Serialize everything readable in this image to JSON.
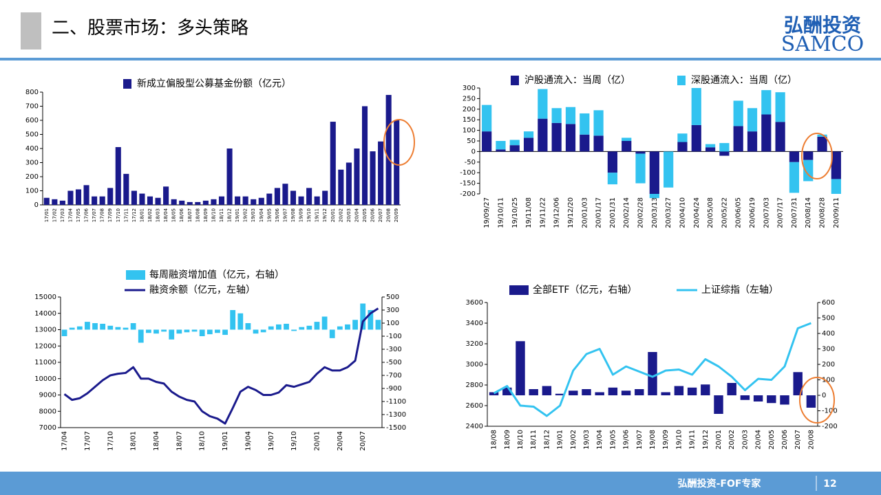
{
  "header": {
    "title": "二、股票市场：多头策略",
    "logo_cn": "弘酬投资",
    "logo_en": "SAMCO"
  },
  "footer": {
    "text": "弘酬投资-FOF专家",
    "page": "12"
  },
  "chart_data": [
    {
      "type": "bar",
      "categories": [
        "17/01",
        "17/02",
        "17/03",
        "17/04",
        "17/05",
        "17/06",
        "17/07",
        "17/08",
        "17/09",
        "17/10",
        "17/11",
        "17/12",
        "18/01",
        "18/02",
        "18/03",
        "18/04",
        "18/05",
        "18/06",
        "18/07",
        "18/08",
        "18/09",
        "18/10",
        "18/11",
        "18/12",
        "19/01",
        "19/02",
        "19/03",
        "19/04",
        "19/05",
        "19/06",
        "19/07",
        "19/08",
        "19/09",
        "19/10",
        "19/11",
        "19/12",
        "20/01",
        "20/02",
        "20/03",
        "20/04",
        "20/05",
        "20/06",
        "20/07",
        "20/08",
        "20/09"
      ],
      "series": [
        {
          "name": "新成立偏股型公募基金份额（亿元）",
          "color": "#1a1a8c",
          "values": [
            50,
            40,
            30,
            100,
            110,
            140,
            60,
            60,
            120,
            410,
            220,
            100,
            80,
            60,
            50,
            130,
            40,
            30,
            20,
            20,
            30,
            40,
            60,
            400,
            60,
            60,
            40,
            50,
            80,
            120,
            150,
            100,
            60,
            120,
            60,
            100,
            590,
            250,
            300,
            400,
            700,
            380,
            450,
            780,
            600
          ]
        }
      ],
      "ylim": [
        0,
        800
      ],
      "yticks": [
        0,
        100,
        200,
        300,
        400,
        500,
        600,
        700,
        800
      ],
      "grid": false
    },
    {
      "type": "bar",
      "stacked": true,
      "categories": [
        "19/09/27",
        "19/10/11",
        "19/10/25",
        "19/11/08",
        "19/11/22",
        "19/12/06",
        "19/12/20",
        "20/01/03",
        "20/01/17",
        "20/01/31",
        "20/02/14",
        "20/02/28",
        "20/03/13",
        "20/03/27",
        "20/04/10",
        "20/04/24",
        "20/05/08",
        "20/05/22",
        "20/06/05",
        "20/06/19",
        "20/07/03",
        "20/07/17",
        "20/07/31",
        "20/08/14",
        "20/08/28",
        "20/09/11"
      ],
      "series": [
        {
          "name": "沪股通流入：当周（亿）",
          "color": "#1a1a8c",
          "values": [
            95,
            10,
            30,
            65,
            155,
            135,
            130,
            80,
            75,
            -100,
            50,
            -10,
            -200,
            0,
            45,
            125,
            20,
            -20,
            120,
            95,
            175,
            140,
            -50,
            -40,
            70,
            -130
          ]
        },
        {
          "name": "深股通流入：当周（亿）",
          "color": "#33c3f0",
          "values": [
            125,
            40,
            25,
            30,
            140,
            70,
            80,
            100,
            120,
            -55,
            15,
            -140,
            -20,
            -170,
            40,
            175,
            15,
            40,
            120,
            110,
            115,
            140,
            -145,
            -100,
            10,
            -70
          ]
        }
      ],
      "ylim": [
        -200,
        300
      ],
      "yticks": [
        -200,
        -150,
        -100,
        -50,
        0,
        50,
        100,
        150,
        200,
        250,
        300
      ],
      "grid": false
    },
    {
      "type": "combo",
      "categories": [
        "17/04",
        null,
        null,
        "17/07",
        null,
        null,
        "17/10",
        null,
        null,
        "18/01",
        null,
        null,
        "18/04",
        null,
        null,
        "18/07",
        null,
        null,
        "18/10",
        null,
        null,
        "19/01",
        null,
        null,
        "19/04",
        null,
        null,
        "19/07",
        null,
        null,
        "19/10",
        null,
        null,
        "20/01",
        null,
        null,
        "20/04",
        null,
        null,
        "20/07",
        null,
        null
      ],
      "series": [
        {
          "name": "每周融资增加值（亿元，右轴）",
          "type": "bar",
          "axis": "y2",
          "color": "#33c3f0",
          "values": [
            -100,
            30,
            50,
            120,
            100,
            90,
            60,
            40,
            30,
            100,
            -200,
            -50,
            -60,
            -30,
            -150,
            -60,
            -40,
            -30,
            -100,
            -70,
            -50,
            -80,
            300,
            250,
            100,
            -60,
            -40,
            50,
            80,
            90,
            -20,
            40,
            60,
            120,
            200,
            -130,
            50,
            80,
            150,
            400,
            300,
            150
          ]
        },
        {
          "name": "融资余额（亿元，左轴）",
          "type": "line",
          "color": "#1a1a8c",
          "values": [
            9050,
            8700,
            8800,
            9100,
            9500,
            9900,
            10200,
            10300,
            10350,
            10700,
            10000,
            10000,
            9800,
            9700,
            9200,
            8900,
            8700,
            8600,
            8000,
            7700,
            7550,
            7250,
            8200,
            9200,
            9500,
            9300,
            9000,
            9000,
            9150,
            9600,
            9500,
            9650,
            9800,
            10300,
            10700,
            10500,
            10500,
            10700,
            11100,
            13500,
            14000,
            14300
          ]
        }
      ],
      "ylim": [
        7000,
        15000
      ],
      "yticks": [
        7000,
        8000,
        9000,
        10000,
        11000,
        12000,
        13000,
        14000,
        15000
      ],
      "y2lim": [
        -1500,
        500
      ],
      "y2ticks": [
        -1500,
        -1300,
        -1100,
        -900,
        -700,
        -500,
        -300,
        -100,
        100,
        300,
        500
      ],
      "grid": false
    },
    {
      "type": "combo",
      "categories": [
        "18/08",
        "18/09",
        "18/10",
        "18/11",
        "18/12",
        "19/01",
        "19/02",
        "19/03",
        "19/04",
        "19/05",
        "19/06",
        "19/07",
        "19/08",
        "19/09",
        "19/10",
        "19/11",
        "19/12",
        "20/01",
        "20/02",
        "20/03",
        "20/04",
        "20/05",
        "20/06",
        "20/07",
        "20/08"
      ],
      "series": [
        {
          "name": "全部ETF（亿元，右轴）",
          "type": "bar",
          "axis": "y2",
          "color": "#1a1a8c",
          "values": [
            20,
            50,
            350,
            40,
            60,
            10,
            30,
            40,
            20,
            50,
            30,
            40,
            280,
            20,
            60,
            50,
            70,
            -120,
            80,
            -30,
            -40,
            -50,
            -60,
            150,
            -80
          ]
        },
        {
          "name": "上证综指（左轴）",
          "type": "line",
          "color": "#33c3f0",
          "values": [
            2720,
            2790,
            2600,
            2590,
            2500,
            2600,
            2940,
            3100,
            3150,
            2900,
            2980,
            2930,
            2880,
            2940,
            2950,
            2900,
            3050,
            2980,
            2880,
            2750,
            2860,
            2850,
            2980,
            3350,
            3400
          ]
        }
      ],
      "ylim": [
        2400,
        3600
      ],
      "yticks": [
        2400,
        2600,
        2800,
        3000,
        3200,
        3400,
        3600
      ],
      "y2lim": [
        -200,
        600
      ],
      "y2ticks": [
        -200,
        -100,
        0,
        100,
        200,
        300,
        400,
        500,
        600
      ],
      "grid": false
    }
  ]
}
